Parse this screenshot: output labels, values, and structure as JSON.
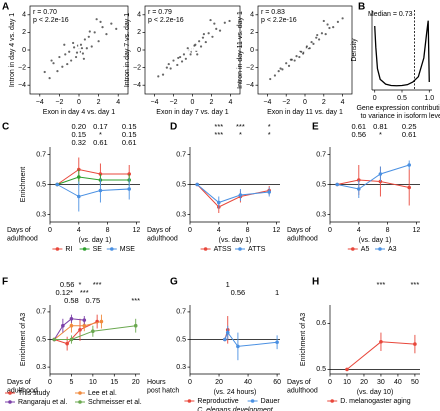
{
  "chart_data": [
    {
      "type": "scatter",
      "panel": "A",
      "annotations": [
        "r = 0.70",
        "p < 2.2e-16"
      ],
      "xlabel": [
        "Exon in day 4 vs. day 1"
      ],
      "ylabel": "Intron in day 4 vs. day 1",
      "xlim": [
        -5,
        5
      ],
      "ylim": [
        -5,
        5
      ],
      "xticks": [
        {
          "value": -4,
          "label": "−4"
        },
        {
          "value": -2,
          "label": "−2"
        },
        0,
        2,
        4
      ],
      "yticks": [
        {
          "value": -4,
          "label": "−4"
        },
        {
          "value": -2,
          "label": "−2"
        },
        0,
        2,
        4
      ],
      "color": "#333333",
      "x": [
        -3.5,
        -3,
        -2.6,
        -2.2,
        -2,
        -1.7,
        -1.4,
        -1.2,
        -1,
        -0.8,
        -0.5,
        -0.3,
        0,
        0.2,
        0.4,
        0.6,
        0.8,
        1,
        1.3,
        1.6,
        2,
        2.4,
        2.8,
        3.3,
        3.8,
        -0.6,
        0.5,
        1.1,
        -1.5,
        2.2,
        -0.2,
        0.3,
        -0.1,
        0.1,
        1.8,
        -2.8
      ],
      "y": [
        -2.5,
        -3.2,
        -1.5,
        -2.4,
        -0.8,
        -1.9,
        -0.5,
        -1.6,
        -0.2,
        -1.2,
        0.3,
        -0.8,
        0.1,
        0.6,
        -0.4,
        1.2,
        0.2,
        1.5,
        0.4,
        2,
        1,
        2.6,
        1.8,
        3,
        2.4,
        0.8,
        -1,
        2.1,
        0.6,
        3.2,
        -0.3,
        0.2,
        0.5,
        -0.2,
        3.5,
        -1.2
      ]
    },
    {
      "type": "scatter",
      "annotations": [
        "r = 0.79",
        "p < 2.2e-16"
      ],
      "xlabel": [
        "Exon in day 7 vs. day 1"
      ],
      "ylabel": "Intron in day 7 vs. day 1",
      "xlim": [
        -5,
        5
      ],
      "ylim": [
        -5,
        5
      ],
      "xticks": [
        {
          "value": -4,
          "label": "−4"
        },
        {
          "value": -2,
          "label": "−2"
        },
        0,
        2,
        4
      ],
      "yticks": [
        {
          "value": -4,
          "label": "−4"
        },
        {
          "value": -2,
          "label": "−2"
        },
        0,
        2,
        4
      ],
      "color": "#333333",
      "x": [
        -3.6,
        -3.1,
        -2.7,
        -2.3,
        -2,
        -1.6,
        -1.3,
        -1.1,
        -0.9,
        -0.7,
        -0.4,
        -0.2,
        0,
        0.2,
        0.4,
        0.7,
        0.9,
        1.1,
        1.4,
        1.7,
        2.1,
        2.5,
        2.9,
        3.4,
        3.9,
        -0.5,
        0.5,
        1.2,
        -1.5,
        2.3,
        -0.1,
        0.3,
        1.9,
        -2.5
      ],
      "y": [
        -3,
        -2.8,
        -2,
        -2.1,
        -1.2,
        -1.7,
        -0.8,
        -1.3,
        -0.5,
        -1,
        0,
        -0.5,
        0.1,
        0.5,
        -0.1,
        1,
        0.4,
        1.4,
        0.9,
        1.9,
        1.5,
        2.4,
        2.2,
        3.1,
        3.3,
        0.2,
        -0.5,
        1.8,
        -0.9,
        3,
        -0.2,
        0.6,
        3.4,
        -1.6
      ]
    },
    {
      "type": "scatter",
      "annotations": [
        "r = 0.83",
        "p < 2.2e-16"
      ],
      "xlabel": [
        "Exon in day 11 vs. day 1"
      ],
      "ylabel": "Intron in day 11 vs. day 1",
      "xlim": [
        -5,
        5
      ],
      "ylim": [
        -5,
        5
      ],
      "xticks": [
        {
          "value": -4,
          "label": "−4"
        },
        {
          "value": -2,
          "label": "−2"
        },
        0,
        2,
        4
      ],
      "yticks": [
        {
          "value": -4,
          "label": "−4"
        },
        {
          "value": -2,
          "label": "−2"
        },
        0,
        2,
        4
      ],
      "color": "#333333",
      "x": [
        -3.7,
        -3.2,
        -2.8,
        -2.4,
        -2,
        -1.7,
        -1.4,
        -1.1,
        -0.9,
        -0.6,
        -0.4,
        -0.2,
        0,
        0.2,
        0.5,
        0.7,
        0.9,
        1.2,
        1.5,
        1.8,
        2.2,
        2.6,
        3,
        3.5,
        4,
        -0.5,
        0.4,
        1.3,
        -1.5,
        2.4,
        0.1,
        -0.1,
        2,
        -2.6
      ],
      "y": [
        -3.3,
        -2.9,
        -2.4,
        -2.2,
        -1.5,
        -1.8,
        -1.1,
        -1.2,
        -0.7,
        -0.8,
        -0.2,
        -0.4,
        0,
        0.4,
        0.2,
        0.9,
        0.7,
        1.4,
        1.2,
        1.9,
        1.8,
        2.5,
        2.6,
        3.2,
        3.6,
        -0.1,
        0.1,
        1.7,
        -1.1,
        2.9,
        0.3,
        -0.3,
        3.3,
        -2.1
      ]
    },
    {
      "type": "density",
      "panel": "B",
      "annotation": "Median = 0.73",
      "median": 0.73,
      "xlabel": [
        "Gene expression contribution",
        "to variance in isoform level"
      ],
      "ylabel": "Density",
      "xlim": [
        -0.05,
        1.05
      ],
      "ylim": [
        0,
        3
      ],
      "xticks": [
        0,
        0.5,
        {
          "value": 1,
          "label": "1.0"
        }
      ],
      "color": "#000000",
      "x": [
        0,
        0.02,
        0.05,
        0.1,
        0.2,
        0.3,
        0.4,
        0.5,
        0.6,
        0.7,
        0.8,
        0.9,
        0.95,
        0.98,
        1.0
      ],
      "values": [
        2.4,
        1.6,
        0.8,
        0.4,
        0.22,
        0.17,
        0.16,
        0.17,
        0.2,
        0.3,
        0.5,
        1.2,
        2.1,
        2.6,
        0.3
      ]
    },
    {
      "type": "line",
      "panel": "C",
      "xlabel": [
        "Days of",
        "adulthood"
      ],
      "xnote": "(vs. day 1)",
      "ylabel": "Enrichment",
      "xlim": [
        0,
        12.5
      ],
      "ylim": [
        0.25,
        0.75
      ],
      "xticks": [
        0,
        4,
        8,
        12
      ],
      "yticks": [
        0.3,
        0.5,
        0.7
      ],
      "hline": 0.5,
      "series": [
        {
          "name": "RI",
          "color": "#e8473b",
          "x": [
            1,
            4,
            7,
            11
          ],
          "values": [
            0.5,
            0.6,
            0.57,
            0.57
          ],
          "errors": [
            0,
            0.08,
            0.07,
            0.06
          ],
          "pvalue_labels": [
            null,
            "0.20",
            "0.17",
            "0.15"
          ]
        },
        {
          "name": "SE",
          "color": "#2ca02c",
          "x": [
            1,
            4,
            7,
            11
          ],
          "values": [
            0.5,
            0.55,
            0.53,
            0.53
          ],
          "errors": [
            0,
            0.05,
            0.04,
            0.04
          ],
          "pvalue_labels": [
            null,
            "0.15",
            "*",
            "0.15"
          ]
        },
        {
          "name": "MSE",
          "color": "#4a90e2",
          "x": [
            1,
            4,
            7,
            11
          ],
          "values": [
            0.5,
            0.42,
            0.46,
            0.47
          ],
          "errors": [
            0,
            0.1,
            0.08,
            0.07
          ],
          "pvalue_labels": [
            null,
            "0.32",
            "0.61",
            "0.61"
          ]
        }
      ]
    },
    {
      "type": "line",
      "panel": "D",
      "xlabel": [
        "Days of",
        "adulthood"
      ],
      "xnote": "(vs. day 1)",
      "xlim": [
        0,
        12.5
      ],
      "ylim": [
        0.25,
        0.75
      ],
      "xticks": [
        0,
        4,
        8,
        12
      ],
      "yticks": [
        0.3,
        0.5,
        0.7
      ],
      "hline": 0.5,
      "series": [
        {
          "name": "ATSS",
          "color": "#e8473b",
          "x": [
            1,
            4,
            7,
            11
          ],
          "values": [
            0.5,
            0.35,
            0.42,
            0.46
          ],
          "errors": [
            0,
            0.04,
            0.04,
            0.03
          ],
          "pvalue_labels": [
            null,
            "***",
            "***",
            "*"
          ]
        },
        {
          "name": "ATTS",
          "color": "#4a90e2",
          "x": [
            1,
            4,
            7,
            11
          ],
          "values": [
            0.5,
            0.38,
            0.43,
            0.45
          ],
          "errors": [
            0,
            0.04,
            0.04,
            0.03
          ],
          "pvalue_labels": [
            null,
            "***",
            "*",
            "*"
          ]
        }
      ]
    },
    {
      "type": "line",
      "panel": "E",
      "xlabel": [
        "Days of",
        "adulthood"
      ],
      "xnote": "(vs. day 1)",
      "xlim": [
        0,
        12.5
      ],
      "ylim": [
        0.25,
        0.75
      ],
      "xticks": [
        0,
        4,
        8,
        12
      ],
      "yticks": [
        0.3,
        0.5,
        0.7
      ],
      "hline": 0.5,
      "series": [
        {
          "name": "A5",
          "color": "#e8473b",
          "x": [
            1,
            4,
            7,
            11
          ],
          "values": [
            0.5,
            0.53,
            0.52,
            0.48
          ],
          "errors": [
            0,
            0.1,
            0.1,
            0.12
          ],
          "pvalue_labels": [
            null,
            "0.61",
            "0.81",
            "0.25"
          ]
        },
        {
          "name": "A3",
          "color": "#4a90e2",
          "x": [
            1,
            4,
            7,
            11
          ],
          "values": [
            0.5,
            0.47,
            0.57,
            0.63
          ],
          "errors": [
            0,
            0.06,
            0.05,
            0.03
          ],
          "pvalue_labels": [
            null,
            "0.56",
            "*",
            "0.61"
          ]
        }
      ]
    },
    {
      "type": "line",
      "panel": "F",
      "xlabel": [
        "Days of",
        "adulthood"
      ],
      "ylabel": "Enrichment of A3",
      "xlim": [
        0,
        21
      ],
      "ylim": [
        0.25,
        0.75
      ],
      "xticks": [
        0,
        5,
        10,
        15,
        20
      ],
      "yticks": [
        0.3,
        0.5,
        0.7
      ],
      "hline": 0.5,
      "series": [
        {
          "name": "This study",
          "color": "#e8473b",
          "x": [
            1,
            4,
            7,
            11
          ],
          "values": [
            0.5,
            0.47,
            0.57,
            0.63
          ],
          "errors": [
            0,
            0.05,
            0.08,
            0.05
          ],
          "pvalue_labels": [
            null,
            "0.56",
            "*",
            "***"
          ]
        },
        {
          "name": "Lee et al.",
          "color": "#f08a3c",
          "x": [
            1,
            5,
            8,
            12
          ],
          "values": [
            0.5,
            0.6,
            0.6,
            0.63
          ],
          "errors": [
            0,
            0.05,
            0.04,
            0.05
          ]
        },
        {
          "name": "Rangaraju et al.",
          "color": "#7b3fa8",
          "x": [
            1,
            3,
            5,
            8
          ],
          "values": [
            0.5,
            0.6,
            0.65,
            0.64
          ],
          "errors": [
            0,
            0.05,
            0.03,
            0.03
          ],
          "pvalue_labels": [
            null,
            "0.12",
            "*",
            "***"
          ]
        },
        {
          "name": "Schmeisser et al.",
          "color": "#6aa84f",
          "x": [
            1,
            5,
            10,
            20
          ],
          "values": [
            0.5,
            0.5,
            0.56,
            0.6
          ],
          "errors": [
            0,
            0.03,
            0.04,
            0.05
          ],
          "pvalue_labels": [
            null,
            "0.58",
            "0.75",
            "***"
          ]
        }
      ]
    },
    {
      "type": "line",
      "panel": "G",
      "xlabel": [
        "Hours",
        "post hatch"
      ],
      "xnote": "(vs. 24 hours)",
      "subtitle": "C. elegans development",
      "xlim": [
        0,
        62
      ],
      "ylim": [
        0.25,
        0.75
      ],
      "xticks": [
        0,
        20,
        40,
        60
      ],
      "yticks": [
        0.3,
        0.5,
        0.7
      ],
      "hline": 0.5,
      "series": [
        {
          "name": "Reproductive",
          "color": "#e8473b",
          "x": [
            24,
            26
          ],
          "values": [
            0.5,
            0.57
          ],
          "errors": [
            0,
            0.1
          ],
          "pvalue_labels": [
            null,
            "1"
          ]
        },
        {
          "name": "Dauer",
          "color": "#4a90e2",
          "x": [
            24,
            26,
            33,
            60
          ],
          "values": [
            0.5,
            0.55,
            0.45,
            0.48
          ],
          "errors": [
            0,
            0.05,
            0.1,
            0.05
          ],
          "pvalue_labels": [
            null,
            null,
            "0.56",
            "1"
          ]
        }
      ]
    },
    {
      "type": "line",
      "panel": "H",
      "xlabel": [
        "Days of",
        "adulthood"
      ],
      "xnote": "(vs. day 10)",
      "ylabel": "Enrichment of A3",
      "xlim": [
        0,
        53
      ],
      "ylim": [
        0.49,
        0.64
      ],
      "xticks": [
        0,
        10,
        20,
        30,
        40,
        50
      ],
      "yticks": [
        0.5,
        0.6
      ],
      "hline": 0.5,
      "series": [
        {
          "name": "D. melanogaster aging",
          "color": "#e8473b",
          "x": [
            10,
            30,
            50
          ],
          "values": [
            0.5,
            0.56,
            0.555
          ],
          "errors": [
            0,
            0.02,
            0.02
          ],
          "pvalue_labels": [
            null,
            "***",
            "***"
          ]
        }
      ]
    }
  ]
}
